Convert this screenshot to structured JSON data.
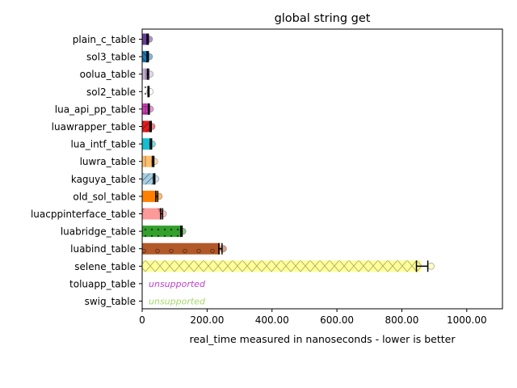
{
  "chart_data": {
    "type": "bar",
    "orientation": "horizontal",
    "title": "global string get",
    "xlabel": "real_time measured in nanoseconds - lower is better",
    "ylabel": "",
    "xlim": [
      0,
      1110
    ],
    "xticks": [
      "0",
      "200.00",
      "400.00",
      "600.00",
      "800.00",
      "1000.00"
    ],
    "xtick_values": [
      0,
      200,
      400,
      600,
      800,
      1000
    ],
    "grid": false,
    "legend": "none",
    "categories": [
      "plain_c_table",
      "sol3_table",
      "oolua_table",
      "sol2_table",
      "lua_api_pp_table",
      "luawrapper_table",
      "lua_intf_table",
      "luwra_table",
      "kaguya_table",
      "old_sol_table",
      "luacppinterface_table",
      "luabridge_table",
      "luabind_table",
      "selene_table",
      "toluapp_table",
      "swig_table"
    ],
    "bars": [
      {
        "label": "plain_c_table",
        "value": 17,
        "err_low": 15,
        "err_high": 19,
        "outlier": 22,
        "color": "#6a3d9a",
        "pattern": "none"
      },
      {
        "label": "sol3_table",
        "value": 17,
        "err_low": 15,
        "err_high": 19,
        "outlier": 22,
        "color": "#1f78b4",
        "pattern": "hatch-backslash"
      },
      {
        "label": "oolua_table",
        "value": 18,
        "err_low": 16,
        "err_high": 20,
        "outlier": 24,
        "color": "#cab2d6",
        "pattern": "hatch-vertical"
      },
      {
        "label": "sol2_table",
        "value": 20,
        "err_low": 18,
        "err_high": 21,
        "outlier": 24,
        "color": "#ffffff",
        "pattern": "dots"
      },
      {
        "label": "lua_api_pp_table",
        "value": 20,
        "err_low": 19,
        "err_high": 22,
        "outlier": 25,
        "color": "#d43fbd",
        "pattern": "hatch-cross"
      },
      {
        "label": "luawrapper_table",
        "value": 26,
        "err_low": 24,
        "err_high": 28,
        "outlier": 30,
        "color": "#e31a1c",
        "pattern": "hatch-slash"
      },
      {
        "label": "lua_intf_table",
        "value": 27,
        "err_low": 25,
        "err_high": 29,
        "outlier": 31,
        "color": "#17becf",
        "pattern": "none"
      },
      {
        "label": "luwra_table",
        "value": 34,
        "err_low": 32,
        "err_high": 36,
        "outlier": 38,
        "color": "#fdbf6f",
        "pattern": "hatch-vertical"
      },
      {
        "label": "kaguya_table",
        "value": 37,
        "err_low": 35,
        "err_high": 39,
        "outlier": 42,
        "color": "#a6cee3",
        "pattern": "hatch-slash"
      },
      {
        "label": "old_sol_table",
        "value": 45,
        "err_low": 42,
        "err_high": 48,
        "outlier": 52,
        "color": "#ff7f00",
        "pattern": "none"
      },
      {
        "label": "luacppinterface_table",
        "value": 60,
        "err_low": 57,
        "err_high": 63,
        "outlier": 65,
        "color": "#fb9a99",
        "pattern": "stars"
      },
      {
        "label": "luabridge_table",
        "value": 121,
        "err_low": 119,
        "err_high": 123,
        "outlier": 125,
        "color": "#33a02c",
        "pattern": "dots"
      },
      {
        "label": "luabind_table",
        "value": 240,
        "err_low": 236,
        "err_high": 246,
        "outlier": 250,
        "color": "#b15928",
        "pattern": "circles"
      },
      {
        "label": "selene_table",
        "value": 860,
        "err_low": 845,
        "err_high": 880,
        "outlier": 890,
        "color": "#ffff99",
        "pattern": "hatch-x"
      },
      {
        "label": "toluapp_table",
        "value": null,
        "note": "unsupported",
        "note_color": "#c23fcf"
      },
      {
        "label": "swig_table",
        "value": null,
        "note": "unsupported",
        "note_color": "#a6d96a"
      }
    ]
  }
}
